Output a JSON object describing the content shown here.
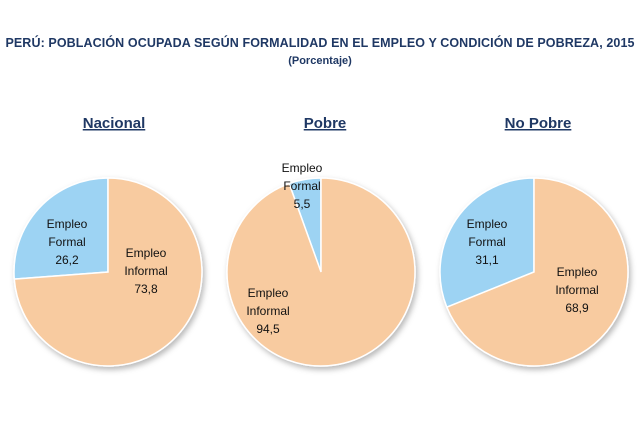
{
  "title": "PERÚ: POBLACIÓN OCUPADA SEGÚN FORMALIDAD EN EL EMPLEO Y CONDICIÓN DE POBREZA, 2015",
  "subtitle": "(Porcentaje)",
  "colors": {
    "formal": "#9dd3f3",
    "informal": "#f8cba0",
    "edge": "#ffffff",
    "title": "#1f3864"
  },
  "chart_data": [
    {
      "type": "pie",
      "title": "Nacional",
      "slices": [
        {
          "label": [
            "Empleo",
            "Formal",
            "26,2"
          ],
          "value": 26.2
        },
        {
          "label": [
            "Empleo",
            "Informal",
            "73,8"
          ],
          "value": 73.8
        }
      ]
    },
    {
      "type": "pie",
      "title": "Pobre",
      "slices": [
        {
          "label": [
            "Empleo",
            "Formal",
            "5,5"
          ],
          "value": 5.5
        },
        {
          "label": [
            "Empleo",
            "Informal",
            "94,5"
          ],
          "value": 94.5
        }
      ]
    },
    {
      "type": "pie",
      "title": "No Pobre",
      "slices": [
        {
          "label": [
            "Empleo",
            "Formal",
            "31,1"
          ],
          "value": 31.1
        },
        {
          "label": [
            "Empleo",
            "Informal",
            "68,9"
          ],
          "value": 68.9
        }
      ]
    }
  ]
}
